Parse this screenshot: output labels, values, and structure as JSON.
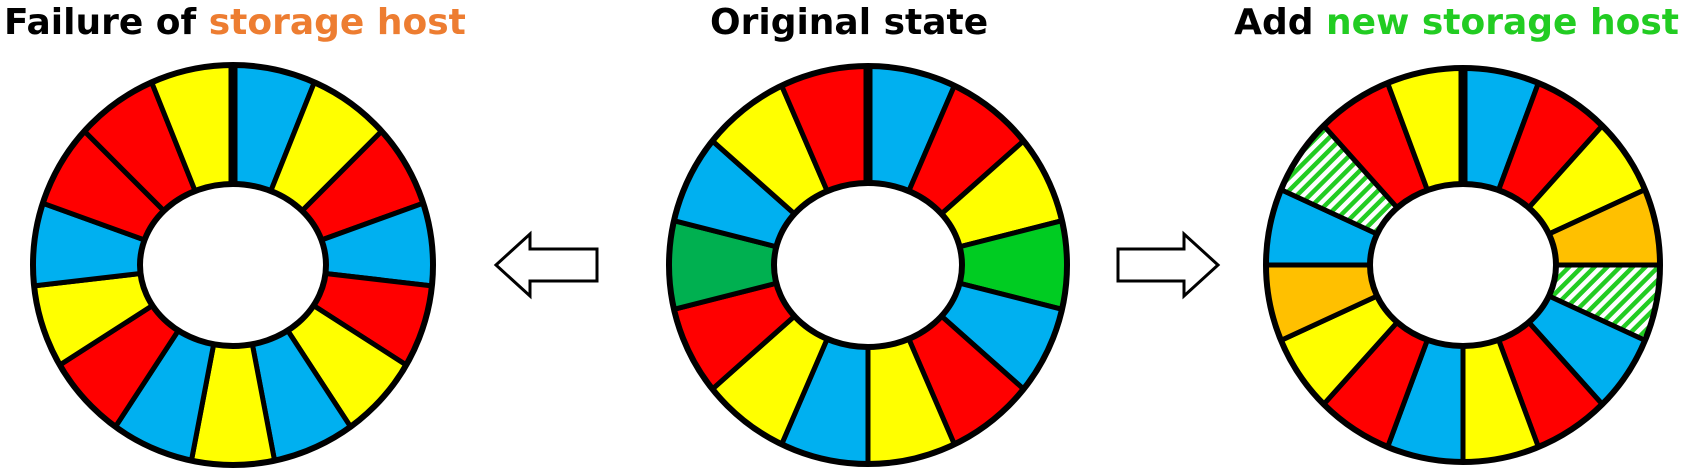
{
  "titles": {
    "left": {
      "prefix": "Failure of ",
      "highlight": "storage host",
      "highlight_color": "#ED7D31"
    },
    "center": {
      "text": "Original state"
    },
    "right": {
      "prefix": "Add ",
      "highlight": "new storage host",
      "highlight_color": "#22CC22"
    }
  },
  "colors": {
    "red": "#FF0000",
    "yellow": "#FFFF00",
    "blue": "#00B0F0",
    "green": "#00CC22",
    "dark_green": "#00B050",
    "orange": "#FFC000",
    "outline": "#000000"
  },
  "arrows": [
    {
      "name": "arrow-left",
      "direction": "left"
    },
    {
      "name": "arrow-right",
      "direction": "right"
    }
  ],
  "rings": [
    {
      "name": "ring-failure",
      "segments": [
        {
          "color": "blue",
          "span": 1
        },
        {
          "color": "yellow",
          "span": 1
        },
        {
          "color": "red",
          "span": 1
        },
        {
          "color": "blue",
          "span": 1
        },
        {
          "color": "red",
          "span": 1
        },
        {
          "color": "yellow",
          "span": 1
        },
        {
          "color": "blue",
          "span": 1
        },
        {
          "color": "yellow",
          "span": 1
        },
        {
          "color": "blue",
          "span": 1
        },
        {
          "color": "red",
          "span": 1
        },
        {
          "color": "yellow",
          "span": 1
        },
        {
          "color": "blue",
          "span": 1
        },
        {
          "color": "red",
          "span": 1
        },
        {
          "color": "red",
          "span": 1
        },
        {
          "color": "yellow",
          "span": 1
        }
      ]
    },
    {
      "name": "ring-original",
      "segments": [
        {
          "color": "blue",
          "span": 1
        },
        {
          "color": "red",
          "span": 1
        },
        {
          "color": "yellow",
          "span": 1
        },
        {
          "color": "green",
          "span": 1
        },
        {
          "color": "blue",
          "span": 1
        },
        {
          "color": "red",
          "span": 1
        },
        {
          "color": "yellow",
          "span": 1
        },
        {
          "color": "blue",
          "span": 1
        },
        {
          "color": "yellow",
          "span": 1
        },
        {
          "color": "red",
          "span": 1
        },
        {
          "color": "dark_green",
          "span": 1
        },
        {
          "color": "blue",
          "span": 1
        },
        {
          "color": "yellow",
          "span": 1
        },
        {
          "color": "red",
          "span": 1
        }
      ]
    },
    {
      "name": "ring-add-host",
      "segments": [
        {
          "color": "blue",
          "span": 1
        },
        {
          "color": "red",
          "span": 1
        },
        {
          "color": "yellow",
          "span": 1
        },
        {
          "color": "orange",
          "span": 1
        },
        {
          "color": "striped_green",
          "span": 1
        },
        {
          "color": "blue",
          "span": 1
        },
        {
          "color": "red",
          "span": 1
        },
        {
          "color": "yellow",
          "span": 1
        },
        {
          "color": "blue",
          "span": 1
        },
        {
          "color": "red",
          "span": 1
        },
        {
          "color": "yellow",
          "span": 1
        },
        {
          "color": "orange",
          "span": 1
        },
        {
          "color": "blue",
          "span": 1
        },
        {
          "color": "striped_green",
          "span": 1
        },
        {
          "color": "red",
          "span": 1
        },
        {
          "color": "yellow",
          "span": 1
        }
      ]
    }
  ]
}
